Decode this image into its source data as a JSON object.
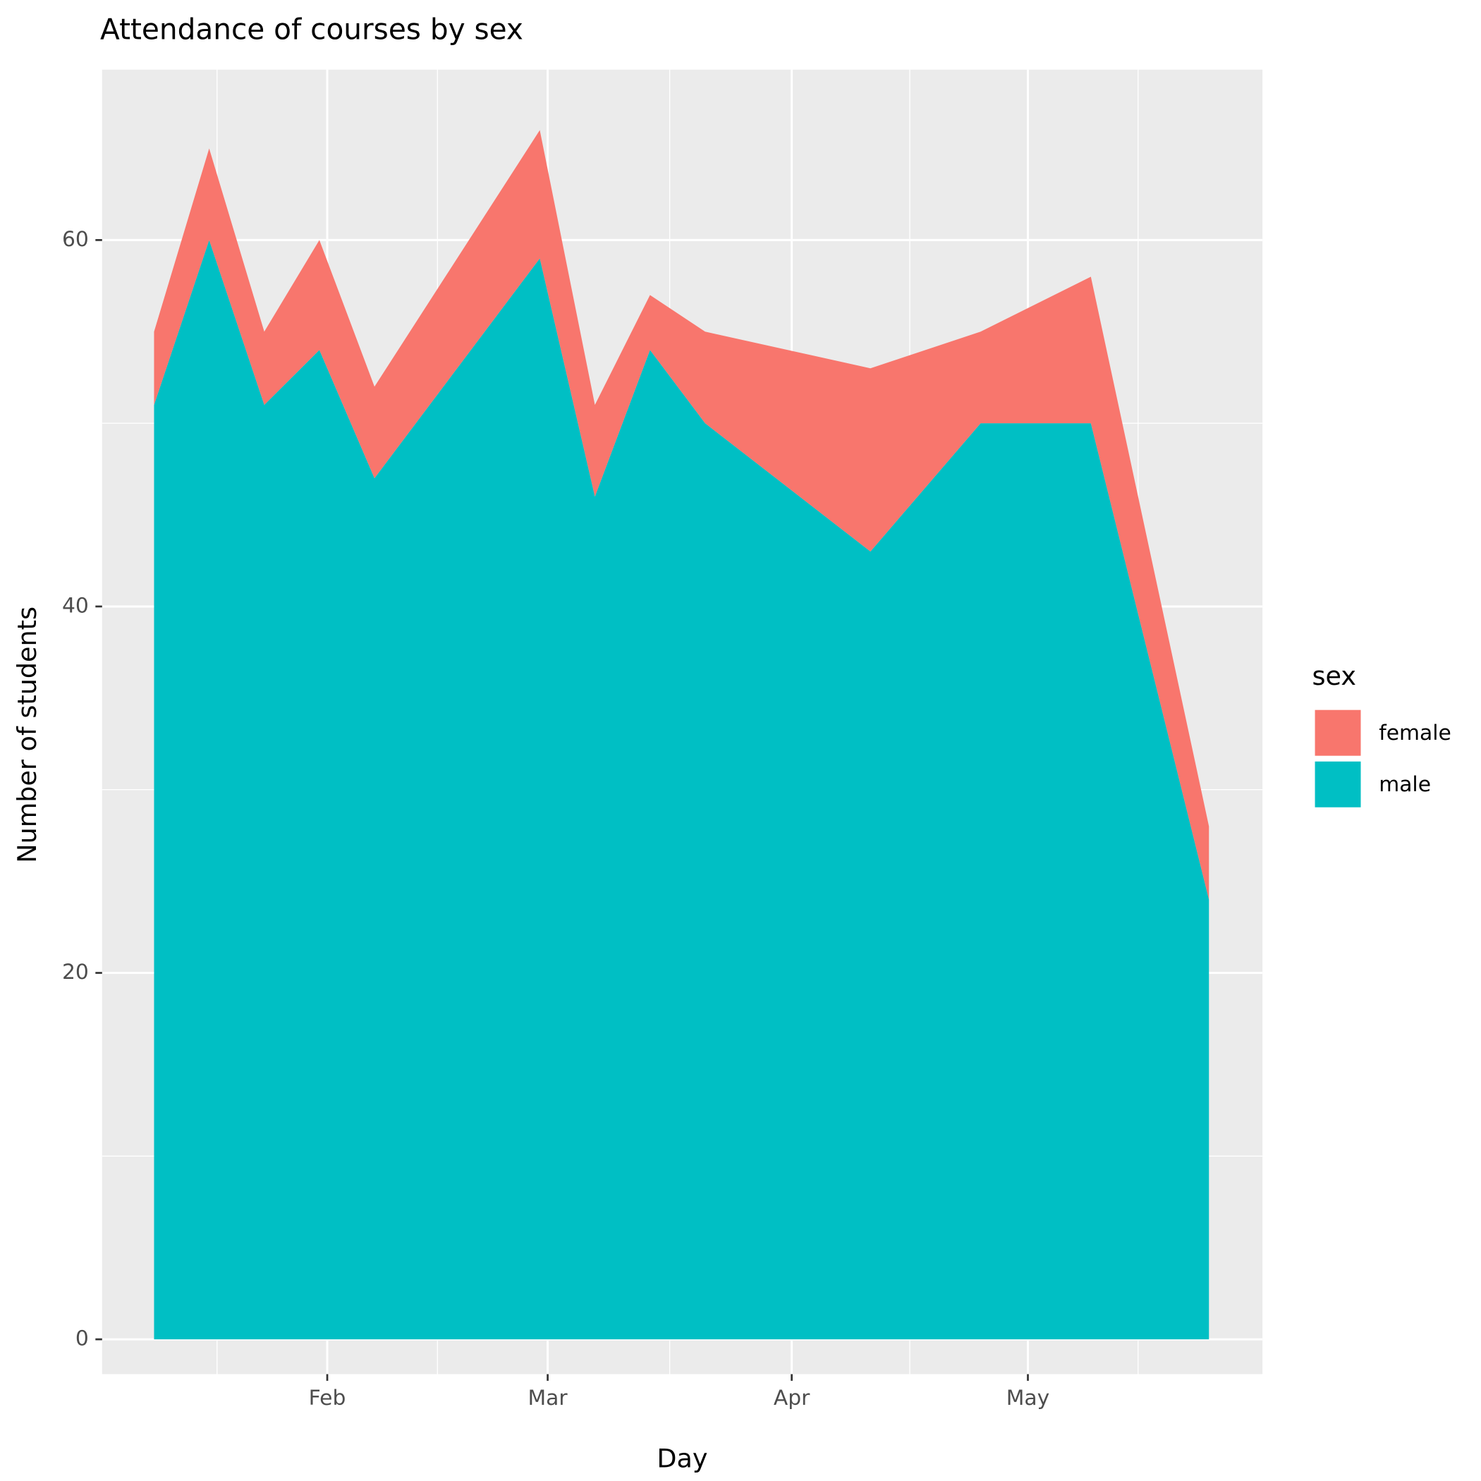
{
  "chart_data": {
    "type": "area",
    "title": "Attendance of courses by sex",
    "x_label": "Day",
    "y_label": "Number of students",
    "x": [
      10,
      17,
      24,
      31,
      38,
      59,
      66,
      73,
      80,
      101,
      115,
      129,
      144
    ],
    "series": [
      {
        "name": "female",
        "color": "#F8766D",
        "values": [
          4,
          5,
          4,
          6,
          5,
          7,
          5,
          3,
          5,
          10,
          5,
          8,
          4
        ]
      },
      {
        "name": "male",
        "color": "#00BFC4",
        "values": [
          51,
          60,
          51,
          54,
          47,
          59,
          46,
          54,
          50,
          43,
          50,
          50,
          24
        ]
      }
    ],
    "stacked": true,
    "xlim": [
      3.4,
      150.8
    ],
    "xticks": [
      {
        "value": 32,
        "label": "Feb"
      },
      {
        "value": 60,
        "label": "Mar"
      },
      {
        "value": 91,
        "label": "Apr"
      },
      {
        "value": 121,
        "label": "May"
      }
    ],
    "ylim": [
      -1.9,
      69.3
    ],
    "yticks": [
      0,
      20,
      40,
      60
    ],
    "grid": true,
    "legend_title": "sex",
    "legend": "right"
  }
}
